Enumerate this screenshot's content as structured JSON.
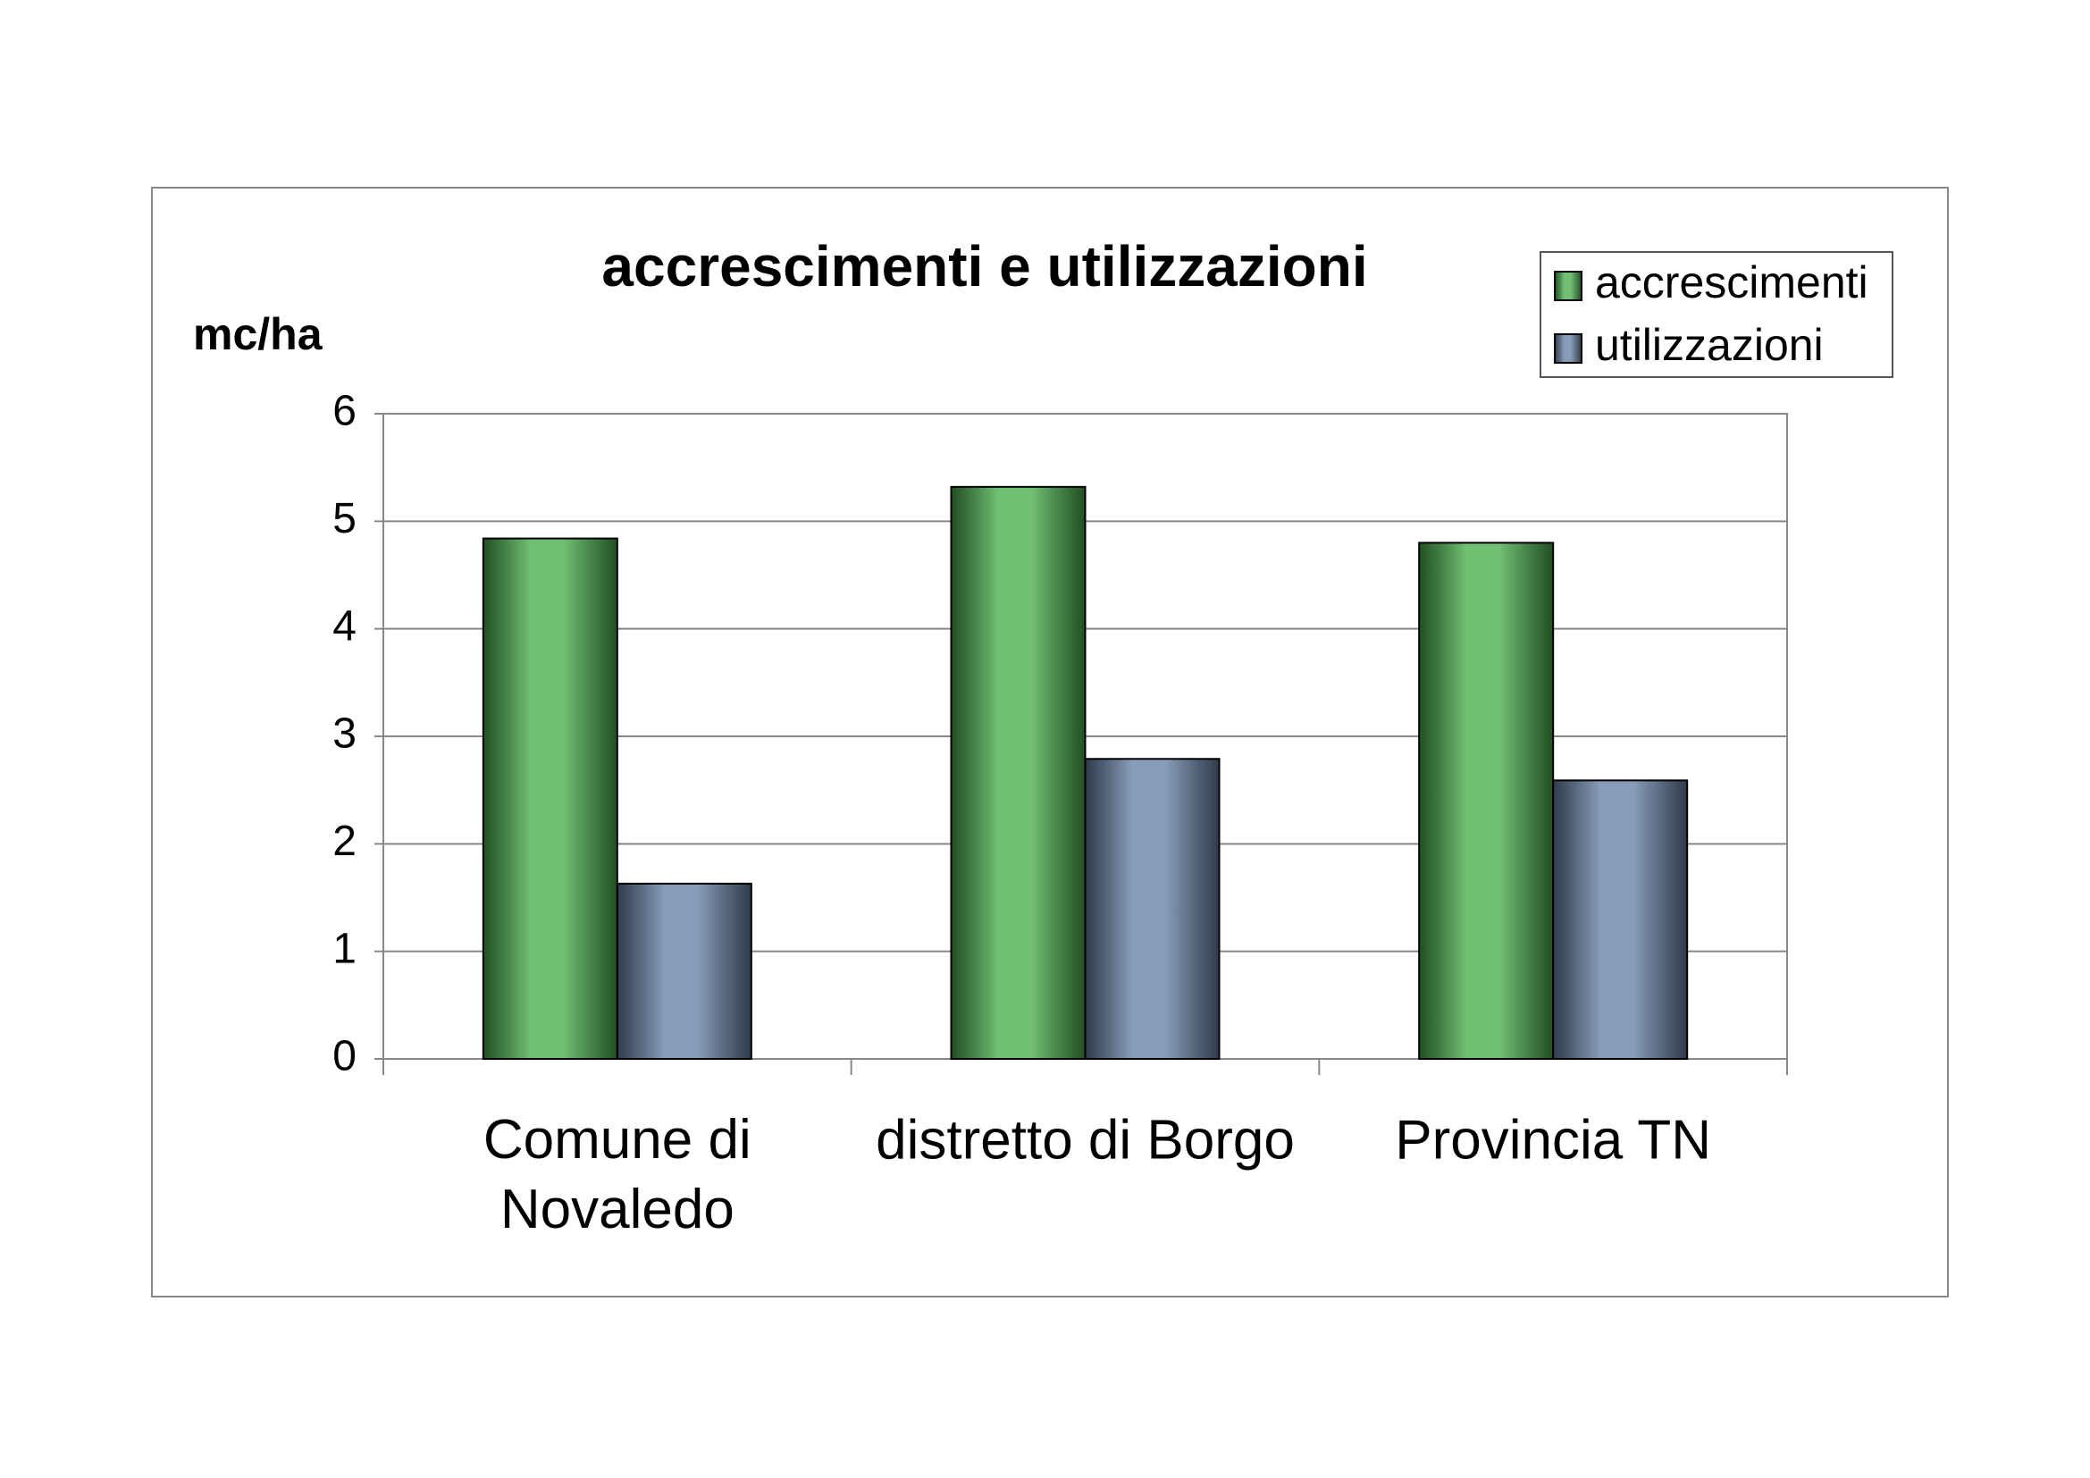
{
  "chart_data": {
    "type": "bar",
    "title": "accrescimenti e utilizzazioni",
    "y_label": "mc/ha",
    "categories": [
      "Comune di Novaledo",
      "distretto di Borgo",
      "Provincia TN"
    ],
    "series": [
      {
        "name": "accrescimenti",
        "color": "#4caf50",
        "values": [
          4.84,
          5.32,
          4.8
        ]
      },
      {
        "name": "utilizzazioni",
        "color": "#6a84a8",
        "values": [
          1.63,
          2.79,
          2.59
        ]
      }
    ],
    "ylim": [
      0,
      6
    ],
    "yticks": [
      0,
      1,
      2,
      3,
      4,
      5,
      6
    ],
    "grid": true,
    "legend": "top-right"
  }
}
